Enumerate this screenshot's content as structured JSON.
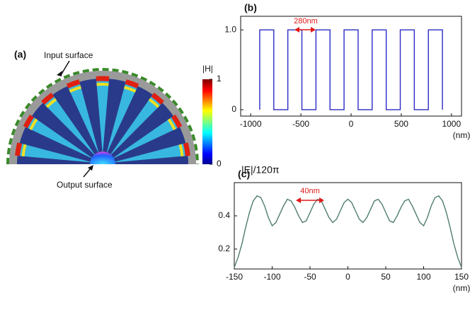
{
  "figure_a": {
    "panel_label": "(a)",
    "input_label": "Input surface",
    "output_label": "Output surface",
    "colorbar": {
      "label": "|H|",
      "clim": [
        0,
        1
      ],
      "ticks": [
        0,
        1
      ]
    }
  },
  "chart_data": [
    {
      "type": "line",
      "panel_label": "(b)",
      "xlabel": "(nm)",
      "x": [
        -910,
        -910,
        -770,
        -770,
        -630,
        -630,
        -490,
        -490,
        -350,
        -350,
        -210,
        -210,
        -70,
        -70,
        70,
        70,
        210,
        210,
        350,
        350,
        490,
        490,
        630,
        630,
        770,
        770,
        910,
        910
      ],
      "series": [
        {
          "color": "#2b2bc4",
          "values": [
            0,
            1,
            1,
            0,
            0,
            1,
            1,
            0,
            0,
            1,
            1,
            0,
            0,
            1,
            1,
            0,
            0,
            1,
            1,
            0,
            0,
            1,
            1,
            0,
            0,
            1,
            1,
            0
          ]
        }
      ],
      "xlim": [
        -1100,
        1100
      ],
      "ylim": [
        -0.08,
        1.17
      ],
      "xticks": [
        -1000,
        -500,
        0,
        500,
        1000
      ],
      "yticks": [
        0,
        {
          "value": 1,
          "label": "1.0"
        }
      ],
      "annotations": [
        {
          "text": "280nm"
        }
      ]
    },
    {
      "type": "line",
      "panel_label": "(c)",
      "xlabel": "(nm)",
      "ylabel": "|E|/120π",
      "x": [
        -150,
        -145,
        -140,
        -135,
        -130,
        -125,
        -120,
        -115,
        -110,
        -105,
        -100,
        -95,
        -90,
        -85,
        -80,
        -75,
        -70,
        -65,
        -60,
        -55,
        -50,
        -45,
        -40,
        -35,
        -30,
        -25,
        -20,
        -15,
        -10,
        -5,
        0,
        5,
        10,
        15,
        20,
        25,
        30,
        35,
        40,
        45,
        50,
        55,
        60,
        65,
        70,
        75,
        80,
        85,
        90,
        95,
        100,
        105,
        110,
        115,
        120,
        125,
        130,
        135,
        140,
        145,
        150
      ],
      "series": [
        {
          "color": "#4f7d6e",
          "values": [
            0.09,
            0.15,
            0.23,
            0.33,
            0.42,
            0.49,
            0.52,
            0.51,
            0.46,
            0.39,
            0.34,
            0.36,
            0.41,
            0.46,
            0.5,
            0.49,
            0.45,
            0.4,
            0.36,
            0.37,
            0.42,
            0.47,
            0.5,
            0.49,
            0.44,
            0.39,
            0.36,
            0.38,
            0.43,
            0.48,
            0.5,
            0.48,
            0.43,
            0.38,
            0.36,
            0.39,
            0.44,
            0.49,
            0.5,
            0.47,
            0.42,
            0.37,
            0.36,
            0.4,
            0.45,
            0.49,
            0.5,
            0.46,
            0.41,
            0.36,
            0.34,
            0.39,
            0.46,
            0.51,
            0.52,
            0.49,
            0.42,
            0.33,
            0.23,
            0.15,
            0.09
          ]
        }
      ],
      "xlim": [
        -150,
        150
      ],
      "ylim": [
        0.08,
        0.6
      ],
      "xticks": [
        -150,
        -100,
        -50,
        0,
        50,
        100,
        150
      ],
      "yticks": [
        0.2,
        0.4
      ],
      "annotations": [
        {
          "text": "40nm"
        }
      ]
    }
  ]
}
